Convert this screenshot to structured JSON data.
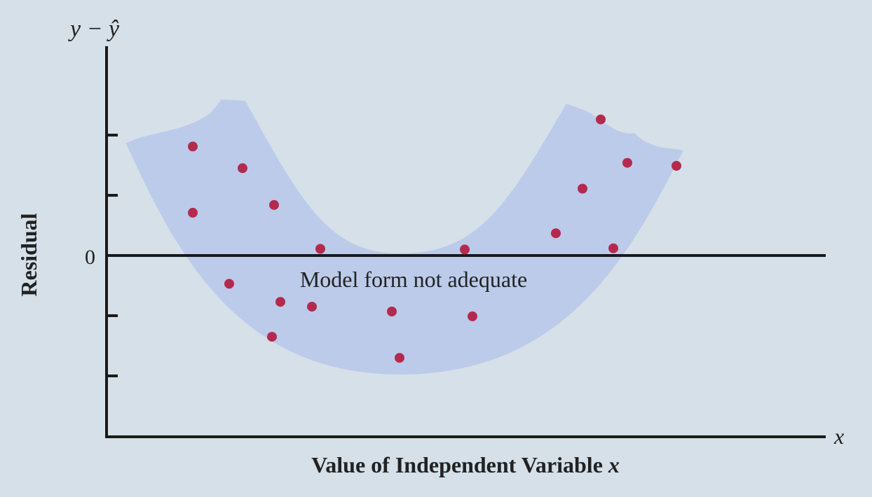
{
  "chart_data": {
    "type": "scatter",
    "title": "",
    "xlabel_prefix": "Value of Independent Variable ",
    "xlabel_var": "x",
    "ylabel": "Residual",
    "x_axis_symbol": "x",
    "y_axis_symbol_y": "y − ",
    "y_axis_symbol_yhat": "ŷ",
    "y_tick_labels": [
      {
        "value": 0,
        "label": "0"
      }
    ],
    "y_ticks": [
      -2,
      -1,
      1,
      2
    ],
    "xlim": [
      0,
      10
    ],
    "ylim": [
      -3,
      3.5
    ],
    "band_annotation": "Model form not adequate",
    "band_color": "#bccbea",
    "point_color": "#b5294e",
    "axis_color": "#1a1a1a",
    "grid": false,
    "legend": "none",
    "points": [
      [
        1.23,
        1.81
      ],
      [
        1.94,
        1.45
      ],
      [
        2.39,
        0.84
      ],
      [
        1.23,
        0.71
      ],
      [
        3.05,
        0.11
      ],
      [
        1.75,
        -0.47
      ],
      [
        2.48,
        -0.77
      ],
      [
        2.93,
        -0.85
      ],
      [
        2.36,
        -1.35
      ],
      [
        4.07,
        -0.93
      ],
      [
        4.18,
        -1.7
      ],
      [
        5.11,
        0.1
      ],
      [
        5.22,
        -1.01
      ],
      [
        6.41,
        0.37
      ],
      [
        6.79,
        1.11
      ],
      [
        7.05,
        2.26
      ],
      [
        7.43,
        1.54
      ],
      [
        7.23,
        0.12
      ],
      [
        8.13,
        1.49
      ]
    ]
  }
}
